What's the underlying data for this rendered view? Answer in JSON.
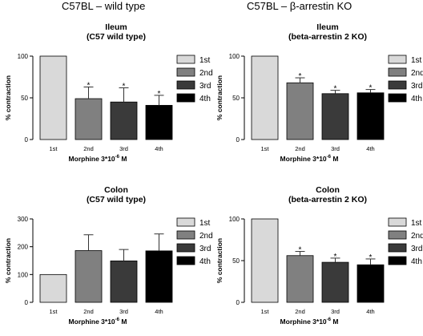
{
  "headings": {
    "left": "C57BL – wild type",
    "right": "C57BL – β-arrestin  KO"
  },
  "colors": {
    "1st": "#d9d9d9",
    "2nd": "#808080",
    "3rd": "#3a3a3a",
    "4th": "#000000"
  },
  "chart_data": [
    {
      "type": "bar",
      "title": "Ileum",
      "subtitle": "(C57 wild type)",
      "xlabel": "Morphine 3*10",
      "xlabel_sup": "-6",
      "xlabel_unit": " M",
      "ylabel": "% contraction",
      "ylim": [
        0,
        100
      ],
      "yticks": [
        "0",
        "50",
        "100"
      ],
      "categories": [
        "1st",
        "2nd",
        "3rd",
        "4th"
      ],
      "values": [
        100,
        49,
        45,
        41
      ],
      "errors": [
        0,
        14,
        17,
        12
      ],
      "significance": [
        "",
        "*",
        "*",
        "*"
      ],
      "legend": [
        "1st",
        "2nd",
        "3rd",
        "4th"
      ]
    },
    {
      "type": "bar",
      "title": "Ileum",
      "subtitle": "(beta-arrestin 2 KO)",
      "xlabel": "Morphine 3*10",
      "xlabel_sup": "-6",
      "xlabel_unit": " M",
      "ylabel": "% contraction",
      "ylim": [
        0,
        100
      ],
      "yticks": [
        "0",
        "50",
        "100"
      ],
      "categories": [
        "1st",
        "2nd",
        "3rd",
        "4th"
      ],
      "values": [
        100,
        68,
        55,
        56
      ],
      "errors": [
        0,
        6,
        4,
        4
      ],
      "significance": [
        "",
        "*",
        "*",
        "*"
      ],
      "legend": [
        "1st",
        "2nd",
        "3rd",
        "4th"
      ]
    },
    {
      "type": "bar",
      "title": "Colon",
      "subtitle": "(C57 wild type)",
      "xlabel": "Morphine 3*10",
      "xlabel_sup": "-6",
      "xlabel_unit": " M",
      "ylabel": "% contraction",
      "ylim": [
        0,
        300
      ],
      "yticks": [
        "0",
        "100",
        "200",
        "300"
      ],
      "categories": [
        "1st",
        "2nd",
        "3rd",
        "4th"
      ],
      "values": [
        100,
        186,
        149,
        185
      ],
      "errors": [
        0,
        57,
        41,
        61
      ],
      "significance": [
        "",
        "",
        "",
        ""
      ],
      "legend": [
        "1st",
        "2nd",
        "3rd",
        "4th"
      ]
    },
    {
      "type": "bar",
      "title": "Colon",
      "subtitle": "(beta-arrestin 2 KO)",
      "xlabel": "Morphine 3*10",
      "xlabel_sup": "-6",
      "xlabel_unit": " M",
      "ylabel": "% contraction",
      "ylim": [
        0,
        100
      ],
      "yticks": [
        "0",
        "50",
        "100"
      ],
      "categories": [
        "1st",
        "2nd",
        "3rd",
        "4th"
      ],
      "values": [
        100,
        56,
        48,
        45
      ],
      "errors": [
        0,
        5,
        5,
        7
      ],
      "significance": [
        "",
        "*",
        "*",
        "*"
      ],
      "legend": [
        "1st",
        "2nd",
        "3rd",
        "4th"
      ]
    }
  ]
}
